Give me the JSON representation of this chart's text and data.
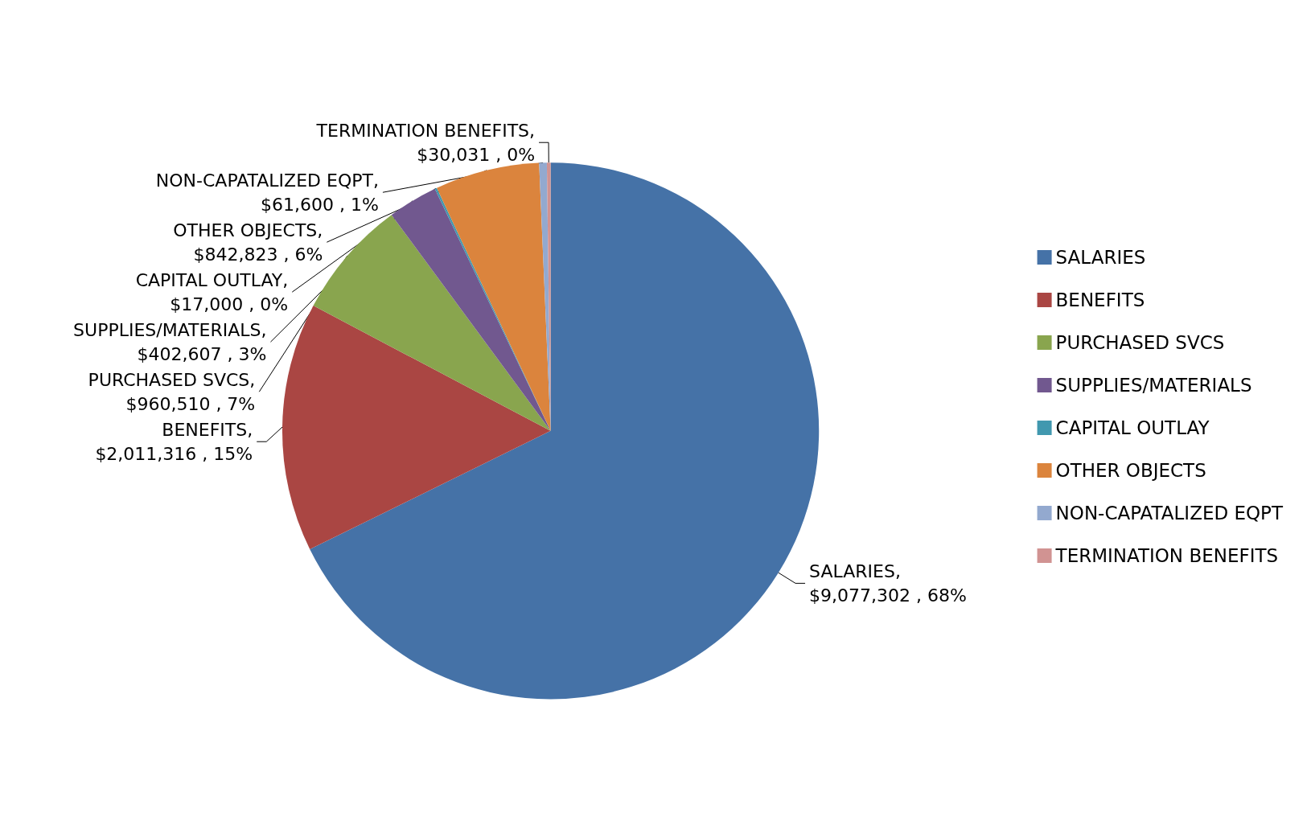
{
  "chart_data": {
    "type": "pie",
    "categories": [
      "SALARIES",
      "BENEFITS",
      "PURCHASED SVCS",
      "SUPPLIES/MATERIALS",
      "CAPITAL OUTLAY",
      "OTHER OBJECTS",
      "NON-CAPATALIZED EQPT",
      "TERMINATION BENEFITS"
    ],
    "values": [
      9077302,
      2011316,
      960510,
      402607,
      17000,
      842823,
      61600,
      30031
    ],
    "value_labels": [
      "SALARIES, $9,077,302 , 68%",
      "BENEFITS, $2,011,316 , 15%",
      "PURCHASED SVCS, $960,510 , 7%",
      "SUPPLIES/MATERIALS, $402,607 , 3%",
      "CAPITAL OUTLAY, $17,000 , 0%",
      "OTHER OBJECTS, $842,823 , 6%",
      "NON-CAPATALIZED EQPT, $61,600 , 1%",
      "TERMINATION BENEFITS, $30,031 , 0%"
    ],
    "colors": [
      "#4572a7",
      "#aa4643",
      "#89a54e",
      "#71588f",
      "#4198af",
      "#db843d",
      "#93a9cf",
      "#d19392"
    ],
    "legend": "right"
  }
}
